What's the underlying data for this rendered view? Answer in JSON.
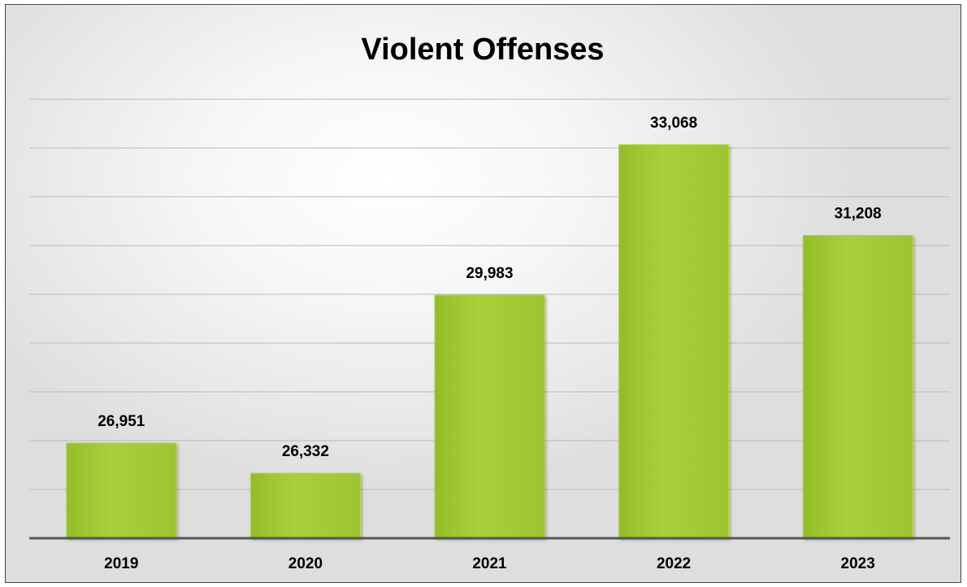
{
  "chart_data": {
    "type": "bar",
    "title": "Violent Offenses",
    "xlabel": "",
    "ylabel": "",
    "categories": [
      "2019",
      "2020",
      "2021",
      "2022",
      "2023"
    ],
    "values": [
      26951,
      26332,
      29983,
      33068,
      31208
    ],
    "value_labels": [
      "26,951",
      "26,332",
      "29,983",
      "33,068",
      "31,208"
    ],
    "ylim": [
      25000,
      35000
    ],
    "grid": true,
    "legend": "none",
    "colors": {
      "bar": "#9dc72e",
      "bar_highlight": "#b2d64a",
      "grid": "#b9b9b9",
      "axis": "#555555"
    }
  }
}
